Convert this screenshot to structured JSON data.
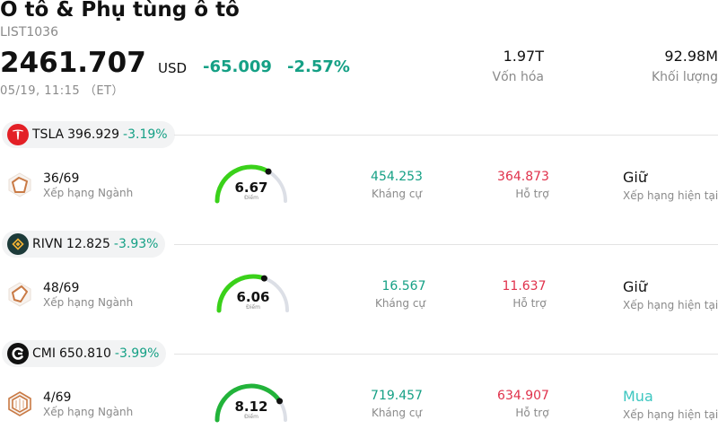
{
  "header": {
    "title": "Ô tô & Phụ tùng ô tô",
    "code": "LIST1036",
    "price": "2461.707",
    "currency": "USD",
    "change": "-65.009",
    "change_pct": "-2.57%",
    "time": "05/19, 11:15 （ET）",
    "stats": [
      {
        "value": "1.97T",
        "label": "Vốn hóa"
      },
      {
        "value": "92.98M",
        "label": "Khối lượng"
      }
    ]
  },
  "stocks": [
    {
      "symbol": "TSLA",
      "price": "396.929",
      "change": "-3.19%",
      "logo_icon": "tesla-logo-icon",
      "rank": "36/69",
      "rank_label": "Xếp hạng Ngành",
      "score": "6.67",
      "score_fraction": 0.667,
      "score_label": "Điểm",
      "resistance": "454.253",
      "resistance_label": "Kháng cự",
      "support": "364.873",
      "support_label": "Hỗ trợ",
      "rating": "Giữ",
      "rating_label": "Xếp hạng hiện tại",
      "rating_color": "#111111"
    },
    {
      "symbol": "RIVN",
      "price": "12.825",
      "change": "-3.93%",
      "logo_icon": "rivian-logo-icon",
      "rank": "48/69",
      "rank_label": "Xếp hạng Ngành",
      "score": "6.06",
      "score_fraction": 0.606,
      "score_label": "Điểm",
      "resistance": "16.567",
      "resistance_label": "Kháng cự",
      "support": "11.637",
      "support_label": "Hỗ trợ",
      "rating": "Giữ",
      "rating_label": "Xếp hạng hiện tại",
      "rating_color": "#111111"
    },
    {
      "symbol": "CMI",
      "price": "650.810",
      "change": "-3.99%",
      "logo_icon": "cummins-logo-icon",
      "rank": "4/69",
      "rank_label": "Xếp hạng Ngành",
      "score": "8.12",
      "score_fraction": 0.812,
      "score_label": "Điểm",
      "resistance": "719.457",
      "resistance_label": "Kháng cự",
      "support": "634.907",
      "support_label": "Hỗ trợ",
      "rating": "Mua",
      "rating_label": "Xếp hạng hiện tại",
      "rating_color": "#3cc6c0"
    }
  ],
  "colors": {
    "positive_teal": "#15a085",
    "negative_red": "#e0314b",
    "gauge_green": "#3ad11a",
    "gauge_green_strong": "#22b33a",
    "gauge_track": "#dcdfe6"
  }
}
